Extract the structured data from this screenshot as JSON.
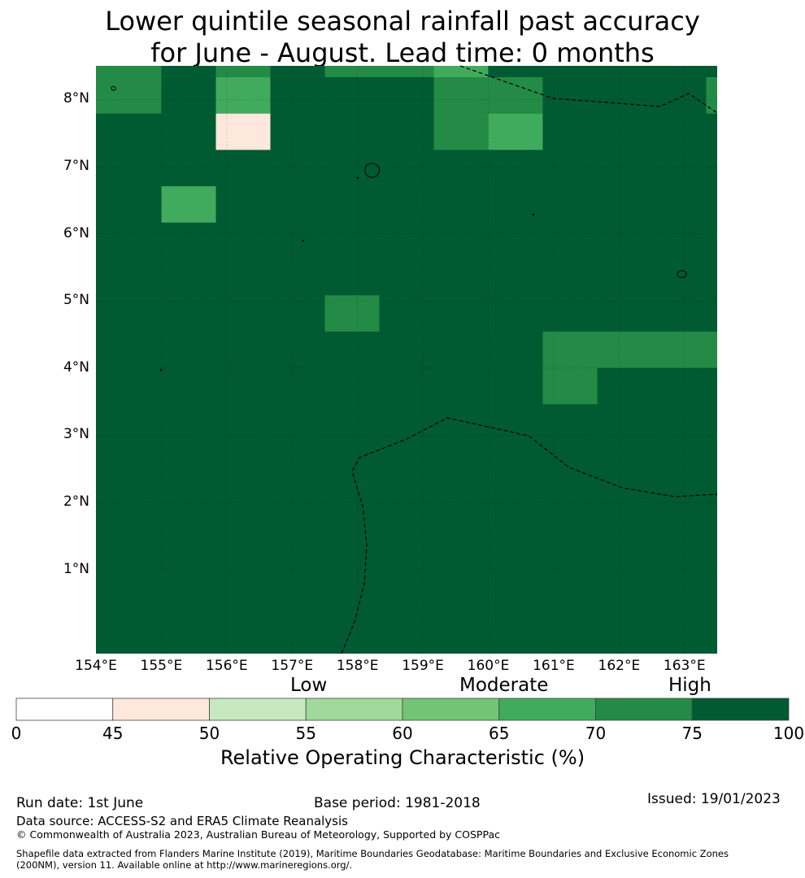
{
  "title_line1": "Lower quintile seasonal rainfall past accuracy",
  "title_line2": "for June - August. Lead time: 0 months",
  "map": {
    "lon_range": [
      154.0,
      163.5
    ],
    "lat_range": [
      -0.25,
      8.5
    ],
    "grid_cell_deg": 0.83,
    "lat_ticks": [
      "8°N",
      "7°N",
      "6°N",
      "5°N",
      "4°N",
      "3°N",
      "2°N",
      "1°N"
    ],
    "lon_ticks": [
      "154°E",
      "155°E",
      "156°E",
      "157°E",
      "158°E",
      "159°E",
      "160°E",
      "161°E",
      "162°E",
      "163°E"
    ],
    "background_value": 80,
    "cells_roc_percent": [
      {
        "col": 0,
        "row": 0,
        "value": 70
      },
      {
        "col": 2,
        "row": 0,
        "value": 70
      },
      {
        "col": 4,
        "row": 0,
        "value": 70
      },
      {
        "col": 5,
        "row": 0,
        "value": 70
      },
      {
        "col": 6,
        "row": 0,
        "value": 65
      },
      {
        "col": 0,
        "row": 1,
        "value": 70
      },
      {
        "col": 2,
        "row": 1,
        "value": 65
      },
      {
        "col": 6,
        "row": 1,
        "value": 70
      },
      {
        "col": 7,
        "row": 1,
        "value": 70
      },
      {
        "col": 11,
        "row": 1,
        "value": 70
      },
      {
        "col": 2,
        "row": 2,
        "value": 48
      },
      {
        "col": 6,
        "row": 2,
        "value": 70
      },
      {
        "col": 7,
        "row": 2,
        "value": 65
      },
      {
        "col": 8,
        "row": 2,
        "value": 75
      },
      {
        "col": 9,
        "row": 3,
        "value": 75
      },
      {
        "col": 11,
        "row": 3,
        "value": 75
      },
      {
        "col": 1,
        "row": 4,
        "value": 65
      },
      {
        "col": 2,
        "row": 4,
        "value": 75
      },
      {
        "col": 4,
        "row": 4,
        "value": 75
      },
      {
        "col": 8,
        "row": 4,
        "value": 75
      },
      {
        "col": 0,
        "row": 5,
        "value": 75
      },
      {
        "col": 2,
        "row": 5,
        "value": 75
      },
      {
        "col": 3,
        "row": 5,
        "value": 75
      },
      {
        "col": 7,
        "row": 5,
        "value": 75
      },
      {
        "col": 9,
        "row": 5,
        "value": 75
      },
      {
        "col": 4,
        "row": 6,
        "value": 75
      },
      {
        "col": 4,
        "row": 7,
        "value": 70
      },
      {
        "col": 2,
        "row": 8,
        "value": 75
      },
      {
        "col": 3,
        "row": 8,
        "value": 75
      },
      {
        "col": 7,
        "row": 8,
        "value": 75
      },
      {
        "col": 8,
        "row": 8,
        "value": 70
      },
      {
        "col": 9,
        "row": 8,
        "value": 70
      },
      {
        "col": 10,
        "row": 8,
        "value": 70
      },
      {
        "col": 11,
        "row": 8,
        "value": 70
      },
      {
        "col": 8,
        "row": 9,
        "value": 70
      }
    ]
  },
  "colorbar": {
    "boundaries": [
      0,
      45,
      50,
      55,
      60,
      65,
      70,
      75,
      100
    ],
    "tick_labels": [
      "0",
      "45",
      "50",
      "55",
      "60",
      "65",
      "70",
      "75",
      "100"
    ],
    "colors": [
      "#ffffff",
      "#fee8de",
      "#c7e9c0",
      "#a1d99b",
      "#74c476",
      "#41ab5d",
      "#238b45",
      "#005a32"
    ],
    "categories": [
      "Low",
      "Moderate",
      "High"
    ],
    "label": "Relative Operating Characteristic (%)"
  },
  "footer": {
    "run_date": "Run date: 1st June",
    "base_period": "Base period: 1981-2018",
    "issued": "Issued: 19/01/2023",
    "data_source": "Data source: ACCESS-S2 and ERA5 Climate Reanalysis",
    "copyright": "© Commonwealth of Australia 2023, Australian Bureau of Meteorology, Supported by COSPPac",
    "shapefile_line1": "Shapefile data extracted from Flanders Marine Institute (2019), Maritime Boundaries Geodatabase: Maritime Boundaries and Exclusive Economic Zones",
    "shapefile_line2": "(200NM), version 11. Available online at http://www.marineregions.org/."
  }
}
